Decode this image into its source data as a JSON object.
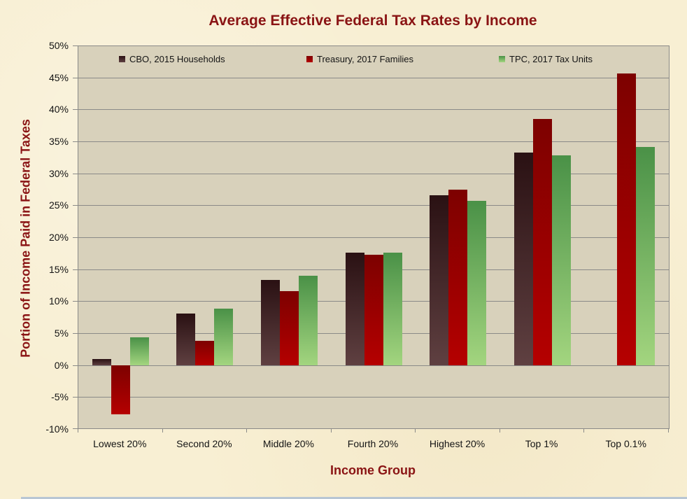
{
  "chart_data": {
    "type": "bar",
    "title": "Average Effective Federal Tax Rates by Income",
    "xlabel": "Income Group",
    "ylabel": "Portion of Income Paid in Federal Taxes",
    "ylim": [
      -10,
      50
    ],
    "ytick_step": 5,
    "ytick_labels": [
      "50%",
      "45%",
      "40%",
      "35%",
      "30%",
      "25%",
      "20%",
      "15%",
      "10%",
      "5%",
      "0%",
      "-5%",
      "-10%"
    ],
    "grid": true,
    "legend_position": "top-inside",
    "categories": [
      "Lowest 20%",
      "Second 20%",
      "Middle 20%",
      "Fourth 20%",
      "Highest 20%",
      "Top 1%",
      "Top 0.1%"
    ],
    "series": [
      {
        "name": "CBO, 2015 Households",
        "color_top": "#2a1113",
        "color_bottom": "#5f4041",
        "values": [
          0.9,
          8.1,
          13.3,
          17.6,
          26.6,
          33.3,
          null
        ]
      },
      {
        "name": "Treasury, 2017 Families",
        "color_top": "#7d0100",
        "color_bottom": "#b50000",
        "values": [
          -7.7,
          3.8,
          11.6,
          17.3,
          27.4,
          38.5,
          45.6
        ]
      },
      {
        "name": "TPC, 2017 Tax Units",
        "color_top": "#4a9147",
        "color_bottom": "#a3d57f",
        "values": [
          4.3,
          8.8,
          14.0,
          17.6,
          25.7,
          32.8,
          34.1
        ]
      }
    ]
  },
  "colors": {
    "background": "#f8efd3",
    "plot_background": "#d8d1bb",
    "gridline": "#8a8a88",
    "title_text": "#8a1414",
    "tick_text": "#141414",
    "bottom_edge_line": "#a7bbd4"
  }
}
